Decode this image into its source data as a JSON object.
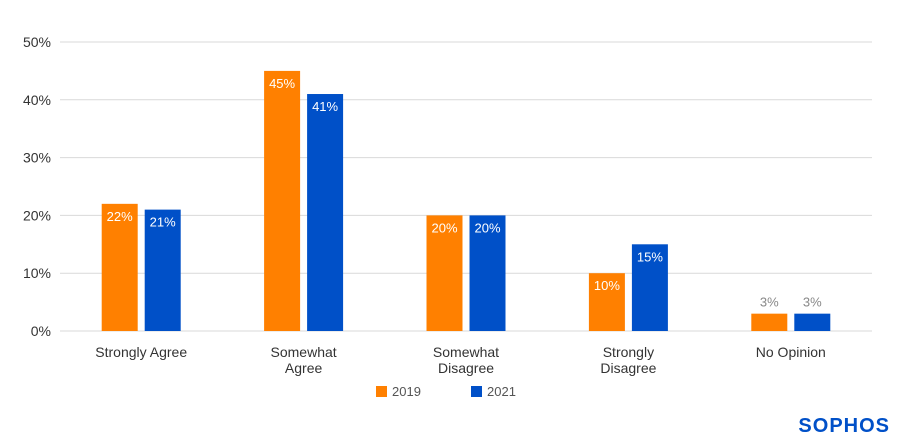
{
  "chart_data": {
    "type": "bar",
    "categories": [
      [
        "Strongly Agree"
      ],
      [
        "Somewhat",
        "Agree"
      ],
      [
        "Somewhat",
        "Disagree"
      ],
      [
        "Strongly",
        "Disagree"
      ],
      [
        "No Opinion"
      ]
    ],
    "series": [
      {
        "name": "2019",
        "values": [
          22,
          45,
          20,
          10,
          3
        ],
        "labels": [
          "22%",
          "45%",
          "20%",
          "10%",
          "3%"
        ],
        "color": "#FF8000"
      },
      {
        "name": "2021",
        "values": [
          21,
          41,
          20,
          15,
          3
        ],
        "labels": [
          "21%",
          "41%",
          "20%",
          "15%",
          "3%"
        ],
        "color": "#0050C8"
      }
    ],
    "ylim": [
      0,
      50
    ],
    "yticks": [
      0,
      10,
      20,
      30,
      40,
      50
    ],
    "ytick_labels": [
      "0%",
      "10%",
      "20%",
      "30%",
      "40%",
      "50%"
    ],
    "grid": true,
    "legend_position": "bottom-center"
  },
  "colors": {
    "label_inside": "#ffffff",
    "label_outside": "#888888",
    "grid": "#d9d9d9",
    "brand": "#0050C8"
  },
  "brand": {
    "logo_text": "SOPHOS"
  }
}
